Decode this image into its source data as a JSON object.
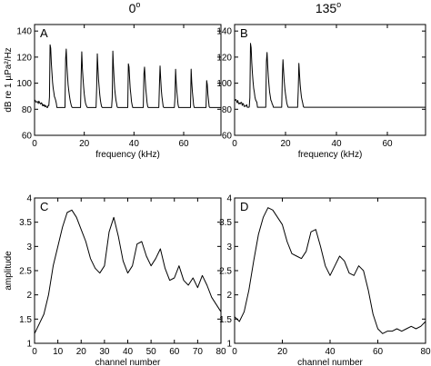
{
  "column_titles": [
    "0",
    "135"
  ],
  "chart_data": [
    {
      "id": "A",
      "type": "line",
      "panel_label": "A",
      "xlabel": "frequency (kHz)",
      "ylabel": "dB re 1 µPa²/Hz",
      "xlim": [
        0,
        75
      ],
      "ylim": [
        60,
        145
      ],
      "xticks": [
        0,
        20,
        40,
        60
      ],
      "yticks": [
        60,
        80,
        100,
        120,
        140
      ],
      "peaks": [
        6.3,
        12.6,
        18.9,
        25.2,
        31.5,
        37.8,
        44.1,
        50.4,
        56.7,
        63.0,
        69.3
      ],
      "peak_values": [
        138,
        135,
        129,
        126,
        124,
        122,
        120,
        118,
        113,
        111,
        107
      ],
      "baseline": [
        [
          0,
          87
        ],
        [
          5,
          82
        ],
        [
          15,
          77
        ],
        [
          30,
          75
        ],
        [
          50,
          72
        ],
        [
          75,
          68
        ]
      ],
      "series": [
        {
          "values": []
        }
      ]
    },
    {
      "id": "B",
      "type": "line",
      "panel_label": "B",
      "xlabel": "frequency (kHz)",
      "xlim": [
        0,
        75
      ],
      "ylim": [
        60,
        145
      ],
      "xticks": [
        0,
        20,
        40,
        60
      ],
      "yticks": [
        60,
        80,
        100,
        120,
        140
      ],
      "peaks": [
        6.3,
        12.6,
        18.9,
        25.2
      ],
      "peak_values": [
        138,
        132,
        123,
        118
      ],
      "baseline": [
        [
          0,
          87
        ],
        [
          5,
          82
        ],
        [
          15,
          78
        ],
        [
          28,
          77
        ],
        [
          29.5,
          70
        ],
        [
          40,
          68
        ],
        [
          75,
          65
        ]
      ],
      "series": [
        {
          "values": []
        }
      ]
    },
    {
      "id": "C",
      "type": "line",
      "panel_label": "C",
      "xlabel": "channel number",
      "ylabel": "amplitude",
      "xlim": [
        0,
        80
      ],
      "ylim": [
        1,
        4
      ],
      "xticks": [
        0,
        10,
        20,
        30,
        40,
        50,
        60,
        70,
        80
      ],
      "yticks": [
        1,
        1.5,
        2,
        2.5,
        3,
        3.5,
        4
      ],
      "x": [
        0,
        2,
        4,
        6,
        8,
        10,
        12,
        14,
        16,
        18,
        20,
        22,
        24,
        26,
        28,
        30,
        32,
        34,
        36,
        38,
        40,
        42,
        44,
        46,
        48,
        50,
        52,
        54,
        56,
        58,
        60,
        62,
        64,
        66,
        68,
        70,
        72,
        74,
        76,
        78,
        80
      ],
      "series": [
        {
          "values": [
            1.2,
            1.4,
            1.6,
            2.0,
            2.6,
            3.0,
            3.4,
            3.7,
            3.75,
            3.6,
            3.35,
            3.1,
            2.75,
            2.55,
            2.45,
            2.6,
            3.3,
            3.6,
            3.2,
            2.7,
            2.45,
            2.6,
            3.05,
            3.1,
            2.8,
            2.6,
            2.75,
            2.95,
            2.55,
            2.3,
            2.35,
            2.6,
            2.3,
            2.2,
            2.35,
            2.15,
            2.4,
            2.2,
            1.95,
            1.8,
            1.65
          ]
        }
      ]
    },
    {
      "id": "D",
      "type": "line",
      "panel_label": "D",
      "xlabel": "channel number",
      "xlim": [
        0,
        80
      ],
      "ylim": [
        1,
        4
      ],
      "xticks": [
        0,
        20,
        40,
        60,
        80
      ],
      "yticks": [
        1,
        1.5,
        2,
        2.5,
        3,
        3.5,
        4
      ],
      "x": [
        0,
        2,
        4,
        6,
        8,
        10,
        12,
        14,
        16,
        18,
        20,
        22,
        24,
        26,
        28,
        30,
        32,
        34,
        36,
        38,
        40,
        42,
        44,
        46,
        48,
        50,
        52,
        54,
        56,
        58,
        60,
        62,
        64,
        66,
        68,
        70,
        72,
        74,
        76,
        78,
        80
      ],
      "series": [
        {
          "values": [
            1.55,
            1.45,
            1.65,
            2.1,
            2.7,
            3.25,
            3.6,
            3.8,
            3.75,
            3.6,
            3.45,
            3.1,
            2.85,
            2.8,
            2.75,
            2.9,
            3.3,
            3.35,
            3.0,
            2.6,
            2.4,
            2.6,
            2.8,
            2.7,
            2.45,
            2.4,
            2.6,
            2.5,
            2.1,
            1.6,
            1.3,
            1.2,
            1.25,
            1.25,
            1.3,
            1.25,
            1.3,
            1.35,
            1.3,
            1.35,
            1.45
          ]
        }
      ]
    }
  ]
}
